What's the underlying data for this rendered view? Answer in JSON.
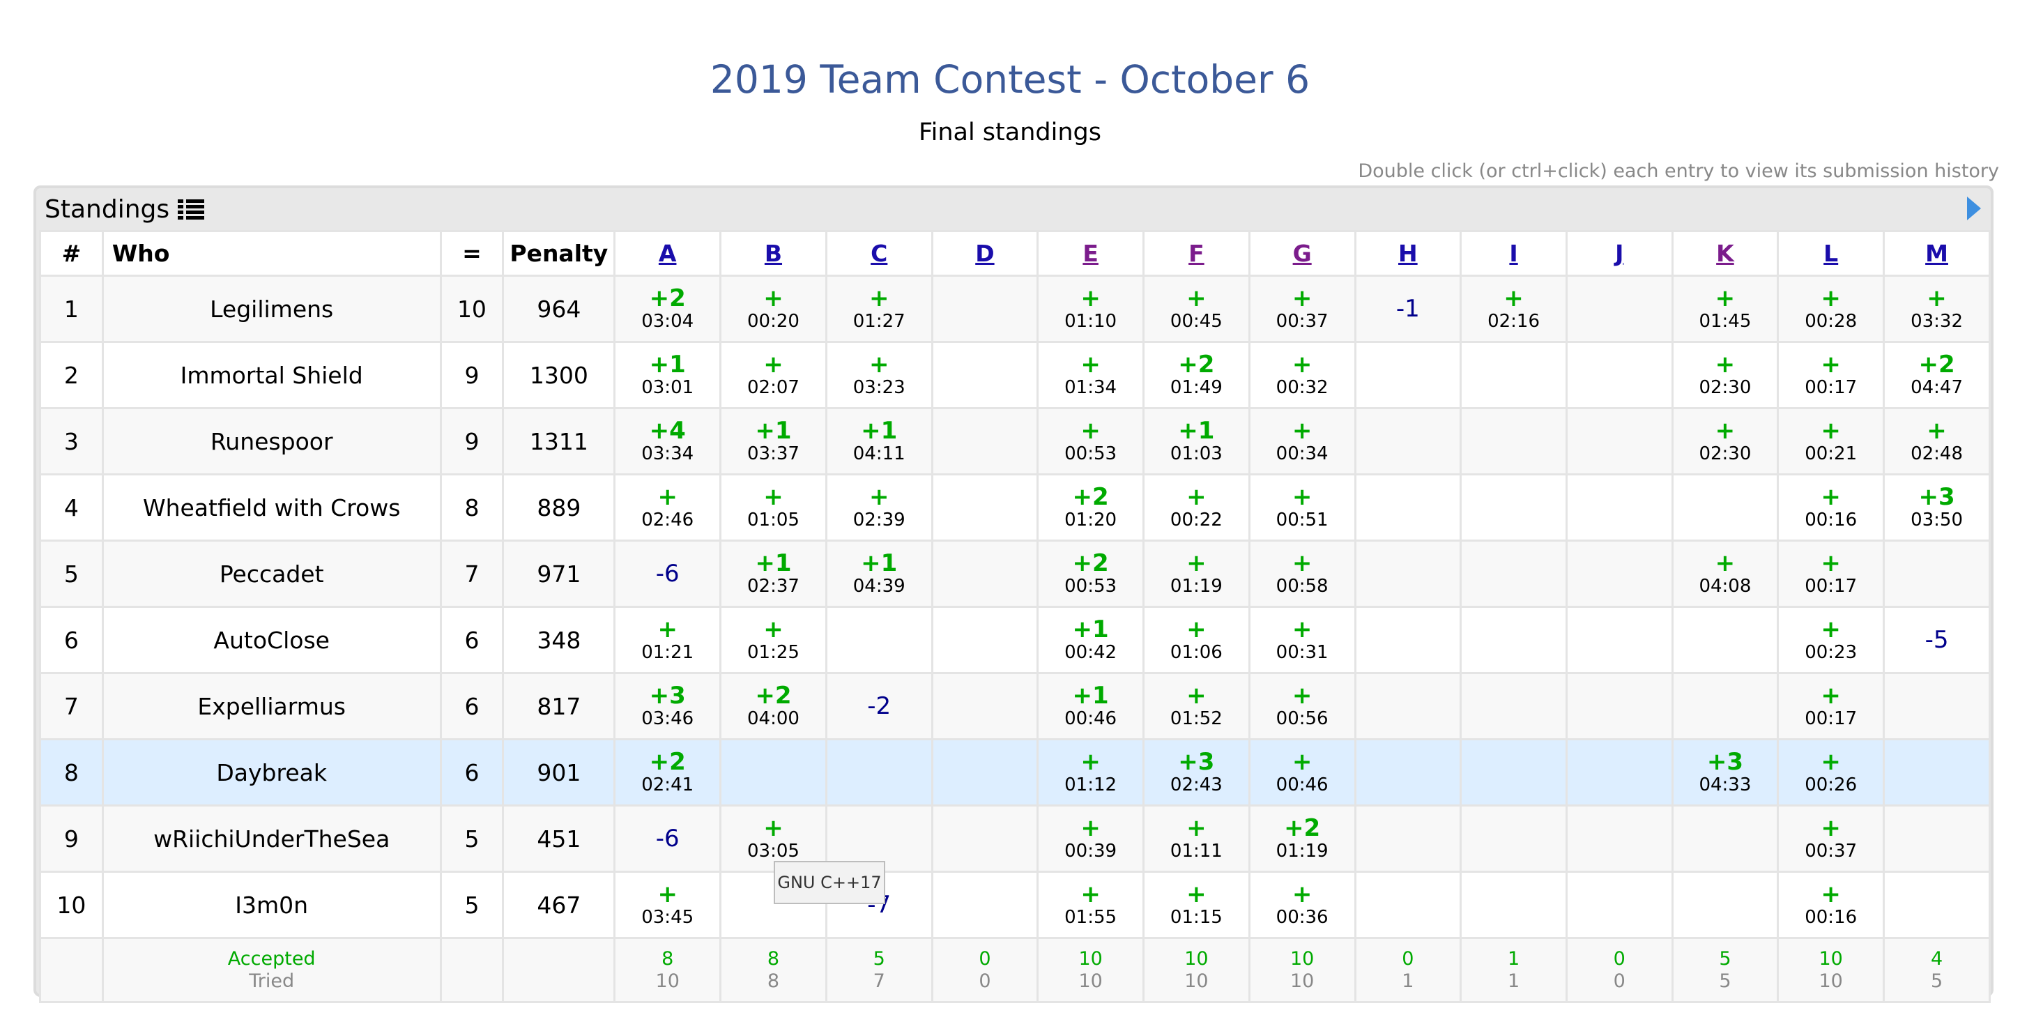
{
  "title": "2019 Team Contest - October 6",
  "subtitle": "Final standings",
  "hint": "Double click (or ctrl+click) each entry to view its submission history",
  "panel": {
    "label": "Standings",
    "icon": "list-icon",
    "arrow_icon": "triangle-right-icon"
  },
  "colors": {
    "title": "#3b5998",
    "accepted": "#00aa00",
    "rejected": "#00008b",
    "highlight_row": "#ddeeff",
    "link": "#1a0dab",
    "visited_link": "#7b1c8c"
  },
  "headers": {
    "rank": "#",
    "who": "Who",
    "solved": "=",
    "penalty": "Penalty"
  },
  "problems": [
    {
      "label": "A",
      "visited": false
    },
    {
      "label": "B",
      "visited": false
    },
    {
      "label": "C",
      "visited": false
    },
    {
      "label": "D",
      "visited": false
    },
    {
      "label": "E",
      "visited": true
    },
    {
      "label": "F",
      "visited": true
    },
    {
      "label": "G",
      "visited": true
    },
    {
      "label": "H",
      "visited": false
    },
    {
      "label": "I",
      "visited": false
    },
    {
      "label": "J",
      "visited": false
    },
    {
      "label": "K",
      "visited": true
    },
    {
      "label": "L",
      "visited": false
    },
    {
      "label": "M",
      "visited": false
    }
  ],
  "rows": [
    {
      "rank": "1",
      "who": "Legilimens",
      "solved": "10",
      "penalty": "964",
      "highlight": false,
      "cells": [
        [
          "+2",
          "03:04"
        ],
        [
          "+",
          "00:20"
        ],
        [
          "+",
          "01:27"
        ],
        null,
        [
          "+",
          "01:10"
        ],
        [
          "+",
          "00:45"
        ],
        [
          "+",
          "00:37"
        ],
        [
          "-1"
        ],
        [
          "+",
          "02:16"
        ],
        null,
        [
          "+",
          "01:45"
        ],
        [
          "+",
          "00:28"
        ],
        [
          "+",
          "03:32"
        ]
      ]
    },
    {
      "rank": "2",
      "who": "Immortal Shield",
      "solved": "9",
      "penalty": "1300",
      "highlight": false,
      "cells": [
        [
          "+1",
          "03:01"
        ],
        [
          "+",
          "02:07"
        ],
        [
          "+",
          "03:23"
        ],
        null,
        [
          "+",
          "01:34"
        ],
        [
          "+2",
          "01:49"
        ],
        [
          "+",
          "00:32"
        ],
        null,
        null,
        null,
        [
          "+",
          "02:30"
        ],
        [
          "+",
          "00:17"
        ],
        [
          "+2",
          "04:47"
        ]
      ]
    },
    {
      "rank": "3",
      "who": "Runespoor",
      "solved": "9",
      "penalty": "1311",
      "highlight": false,
      "cells": [
        [
          "+4",
          "03:34"
        ],
        [
          "+1",
          "03:37"
        ],
        [
          "+1",
          "04:11"
        ],
        null,
        [
          "+",
          "00:53"
        ],
        [
          "+1",
          "01:03"
        ],
        [
          "+",
          "00:34"
        ],
        null,
        null,
        null,
        [
          "+",
          "02:30"
        ],
        [
          "+",
          "00:21"
        ],
        [
          "+",
          "02:48"
        ]
      ]
    },
    {
      "rank": "4",
      "who": "Wheatfield with Crows",
      "solved": "8",
      "penalty": "889",
      "highlight": false,
      "cells": [
        [
          "+",
          "02:46"
        ],
        [
          "+",
          "01:05"
        ],
        [
          "+",
          "02:39"
        ],
        null,
        [
          "+2",
          "01:20"
        ],
        [
          "+",
          "00:22"
        ],
        [
          "+",
          "00:51"
        ],
        null,
        null,
        null,
        null,
        [
          "+",
          "00:16"
        ],
        [
          "+3",
          "03:50"
        ]
      ]
    },
    {
      "rank": "5",
      "who": "Peccadet",
      "solved": "7",
      "penalty": "971",
      "highlight": false,
      "cells": [
        [
          "-6"
        ],
        [
          "+1",
          "02:37"
        ],
        [
          "+1",
          "04:39"
        ],
        null,
        [
          "+2",
          "00:53"
        ],
        [
          "+",
          "01:19"
        ],
        [
          "+",
          "00:58"
        ],
        null,
        null,
        null,
        [
          "+",
          "04:08"
        ],
        [
          "+",
          "00:17"
        ],
        null
      ]
    },
    {
      "rank": "6",
      "who": "AutoClose",
      "solved": "6",
      "penalty": "348",
      "highlight": false,
      "cells": [
        [
          "+",
          "01:21"
        ],
        [
          "+",
          "01:25"
        ],
        null,
        null,
        [
          "+1",
          "00:42"
        ],
        [
          "+",
          "01:06"
        ],
        [
          "+",
          "00:31"
        ],
        null,
        null,
        null,
        null,
        [
          "+",
          "00:23"
        ],
        [
          "-5"
        ]
      ]
    },
    {
      "rank": "7",
      "who": "Expelliarmus",
      "solved": "6",
      "penalty": "817",
      "highlight": false,
      "cells": [
        [
          "+3",
          "03:46"
        ],
        [
          "+2",
          "04:00"
        ],
        [
          "-2"
        ],
        null,
        [
          "+1",
          "00:46"
        ],
        [
          "+",
          "01:52"
        ],
        [
          "+",
          "00:56"
        ],
        null,
        null,
        null,
        null,
        [
          "+",
          "00:17"
        ],
        null
      ]
    },
    {
      "rank": "8",
      "who": "Daybreak",
      "solved": "6",
      "penalty": "901",
      "highlight": true,
      "cells": [
        [
          "+2",
          "02:41"
        ],
        null,
        null,
        null,
        [
          "+",
          "01:12"
        ],
        [
          "+3",
          "02:43"
        ],
        [
          "+",
          "00:46"
        ],
        null,
        null,
        null,
        [
          "+3",
          "04:33"
        ],
        [
          "+",
          "00:26"
        ],
        null
      ]
    },
    {
      "rank": "9",
      "who": "wRiichiUnderTheSea",
      "solved": "5",
      "penalty": "451",
      "highlight": false,
      "cells": [
        [
          "-6"
        ],
        [
          "+",
          "03:05"
        ],
        null,
        null,
        [
          "+",
          "00:39"
        ],
        [
          "+",
          "01:11"
        ],
        [
          "+2",
          "01:19"
        ],
        null,
        null,
        null,
        null,
        [
          "+",
          "00:37"
        ],
        null
      ]
    },
    {
      "rank": "10",
      "who": "I3m0n",
      "solved": "5",
      "penalty": "467",
      "highlight": false,
      "cells": [
        [
          "+",
          "03:45"
        ],
        null,
        [
          "-7"
        ],
        null,
        [
          "+",
          "01:55"
        ],
        [
          "+",
          "01:15"
        ],
        [
          "+",
          "00:36"
        ],
        null,
        null,
        null,
        null,
        [
          "+",
          "00:16"
        ],
        null
      ]
    }
  ],
  "summary": {
    "accepted_label": "Accepted",
    "tried_label": "Tried",
    "accepted": [
      "8",
      "8",
      "5",
      "0",
      "10",
      "10",
      "10",
      "0",
      "1",
      "0",
      "5",
      "10",
      "4"
    ],
    "tried": [
      "10",
      "8",
      "7",
      "0",
      "10",
      "10",
      "10",
      "1",
      "1",
      "0",
      "5",
      "10",
      "5"
    ]
  },
  "tooltip": "GNU C++17"
}
